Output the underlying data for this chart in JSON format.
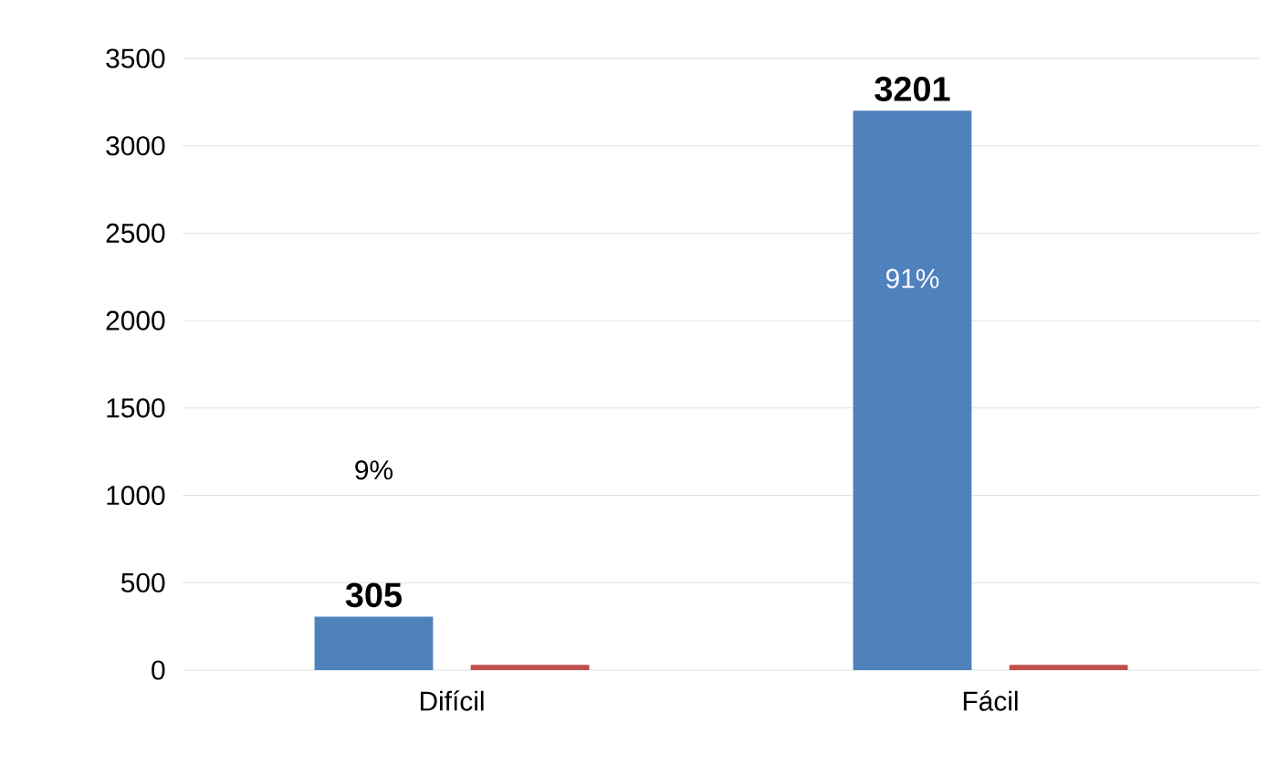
{
  "chart_data": {
    "type": "bar",
    "categories": [
      "Difícil",
      "Fácil"
    ],
    "series": [
      {
        "color": "#4f81bd",
        "values": [
          305,
          3201
        ],
        "value_labels": [
          "305",
          "3201"
        ]
      },
      {
        "color": "#c0504d",
        "values": [
          30,
          30
        ]
      }
    ],
    "ylim": [
      0,
      3500
    ],
    "yticks": [
      0,
      500,
      1000,
      1500,
      2000,
      2500,
      3000,
      3500
    ],
    "grid": "y",
    "annotations": [
      "9%",
      "91%"
    ]
  }
}
